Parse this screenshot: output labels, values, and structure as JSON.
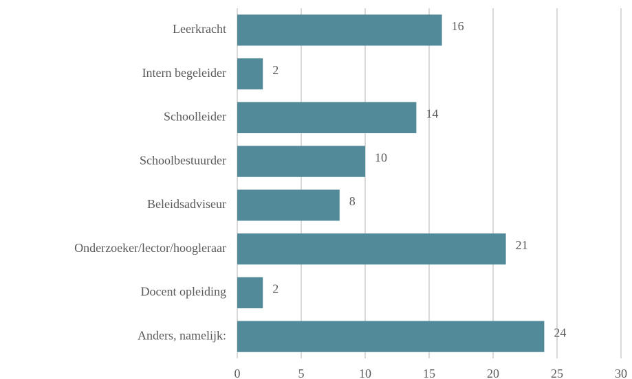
{
  "chart_data": {
    "type": "bar",
    "orientation": "horizontal",
    "categories": [
      "Leerkracht",
      "Intern begeleider",
      "Schoolleider",
      "Schoolbestuurder",
      "Beleidsadviseur",
      "Onderzoeker/lector/hoogleraar",
      "Docent opleiding",
      "Anders, namelijk:"
    ],
    "values": [
      16,
      2,
      14,
      10,
      8,
      21,
      2,
      24
    ],
    "color": "#528a99",
    "xlim": [
      0,
      30
    ],
    "xticks": [
      0,
      5,
      10,
      15,
      20,
      25,
      30
    ],
    "grid": true
  }
}
